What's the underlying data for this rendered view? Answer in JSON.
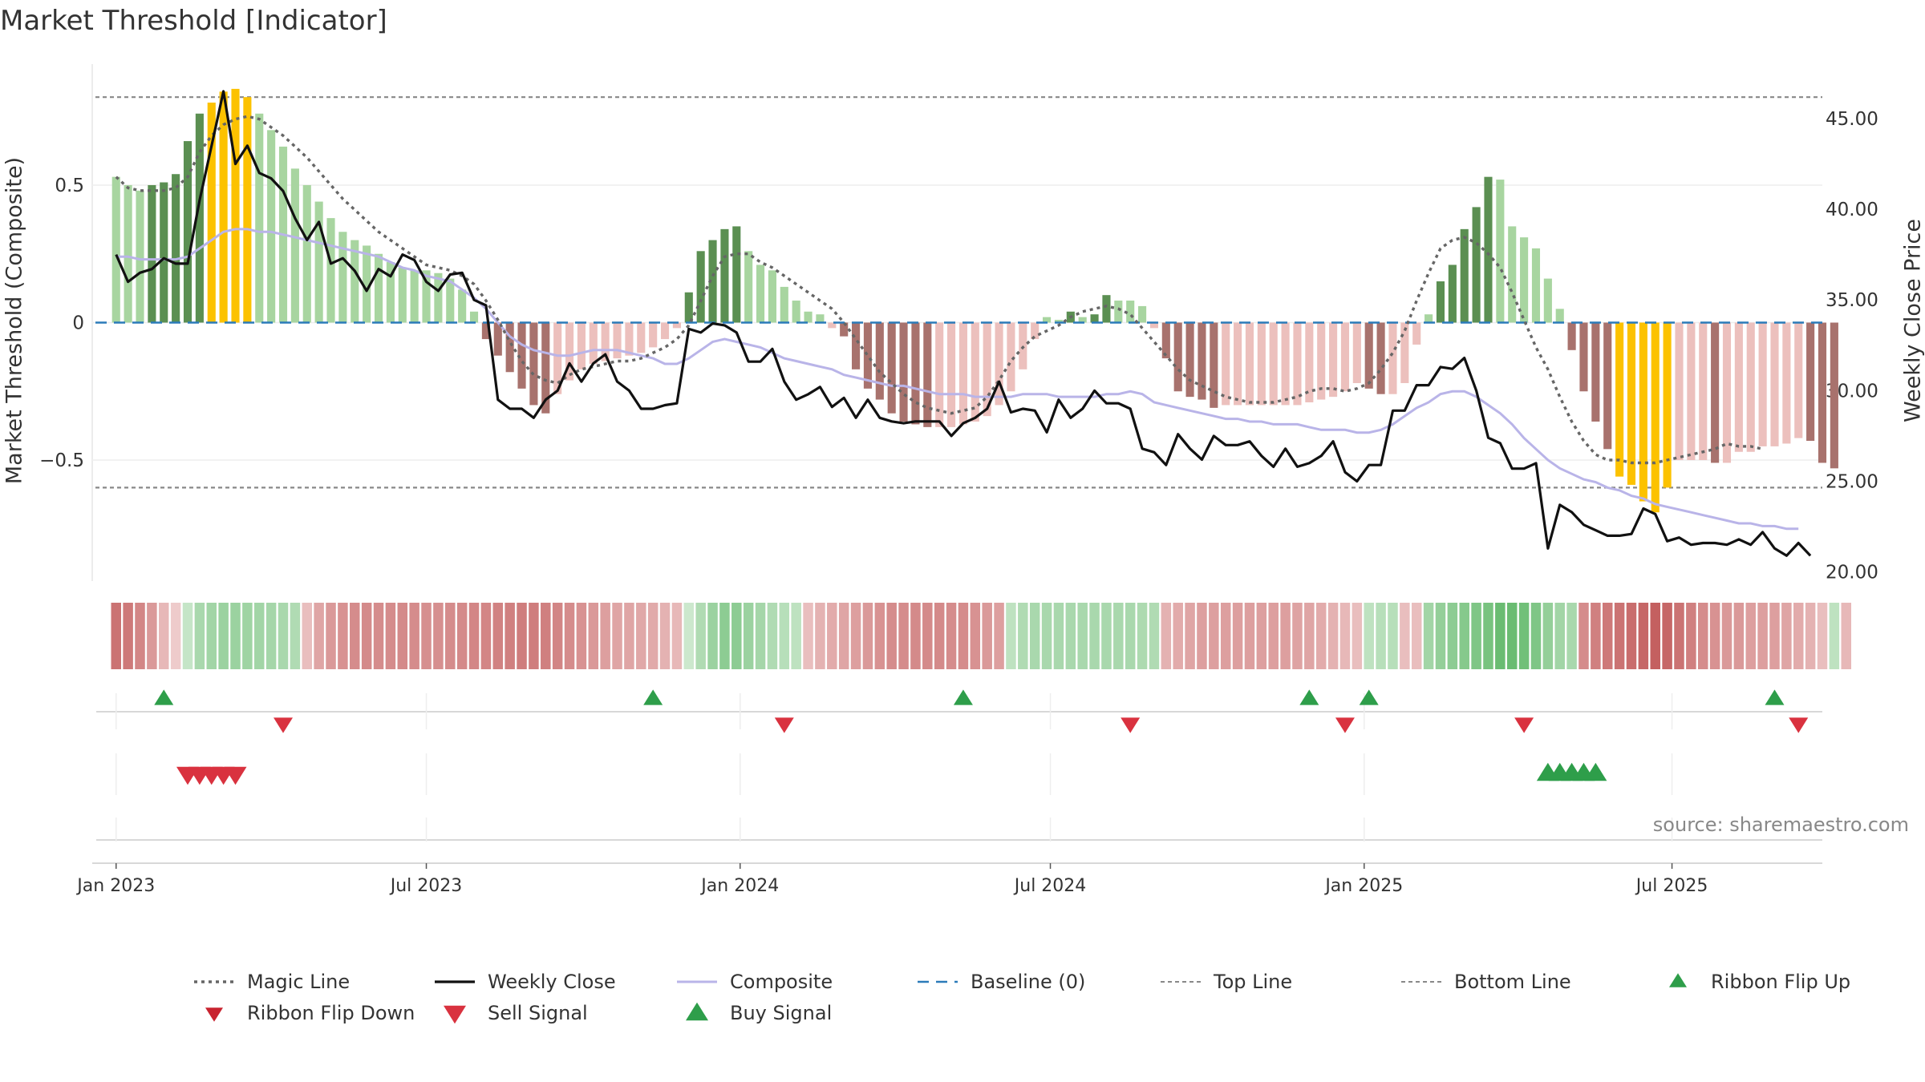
{
  "title": "Market Threshold [Indicator]",
  "source": "source: sharemaestro.com",
  "colors": {
    "bar_pos_light": "#a8d5a0",
    "bar_pos_dark": "#5b8f52",
    "bar_neg_light": "#ecc0bd",
    "bar_neg_dark": "#a8726d",
    "bar_extreme": "#fcc200",
    "weekly_close": "#111111",
    "composite": "#b9b4e8",
    "magic": "#666666",
    "baseline": "#2b7bb9",
    "buy": "#2e9e4a",
    "sell": "#d9323f"
  },
  "chart_data": {
    "type": "bar",
    "ylabel_left": "Market Threshold (Composite)",
    "ylabel_right": "Weekly Close Price",
    "ylim_left": [
      -0.94,
      0.94
    ],
    "ylim_right": [
      19.5,
      48.0
    ],
    "yticks_left": [
      {
        "v": 0.5,
        "l": "0.5"
      },
      {
        "v": 0,
        "l": "0"
      },
      {
        "v": -0.5,
        "l": "−0.5"
      }
    ],
    "yticks_right": [
      {
        "v": 45,
        "l": "45.00"
      },
      {
        "v": 40,
        "l": "40.00"
      },
      {
        "v": 35,
        "l": "35.00"
      },
      {
        "v": 30,
        "l": "30.00"
      },
      {
        "v": 25,
        "l": "25.00"
      },
      {
        "v": 20,
        "l": "20.00"
      }
    ],
    "xlim_weeks": [
      -2,
      143
    ],
    "x_ticks": [
      {
        "w": 0,
        "l": "Jan 2023"
      },
      {
        "w": 26,
        "l": "Jul 2023"
      },
      {
        "w": 52.3,
        "l": "Jan 2024"
      },
      {
        "w": 78.3,
        "l": "Jul 2024"
      },
      {
        "w": 104.6,
        "l": "Jan 2025"
      },
      {
        "w": 130.4,
        "l": "Jul 2025"
      }
    ],
    "top_line": 0.82,
    "bottom_line": -0.6,
    "bars": [
      0.53,
      0.5,
      0.48,
      0.5,
      0.51,
      0.54,
      0.66,
      0.76,
      0.8,
      0.84,
      0.85,
      0.82,
      0.76,
      0.7,
      0.64,
      0.56,
      0.5,
      0.44,
      0.38,
      0.33,
      0.3,
      0.28,
      0.25,
      0.22,
      0.2,
      0.19,
      0.19,
      0.18,
      0.16,
      0.12,
      0.04,
      -0.06,
      -0.12,
      -0.18,
      -0.24,
      -0.3,
      -0.33,
      -0.26,
      -0.21,
      -0.17,
      -0.15,
      -0.14,
      -0.13,
      -0.12,
      -0.11,
      -0.09,
      -0.06,
      -0.02,
      0.11,
      0.26,
      0.3,
      0.34,
      0.35,
      0.26,
      0.21,
      0.19,
      0.13,
      0.08,
      0.04,
      0.03,
      -0.02,
      -0.05,
      -0.17,
      -0.24,
      -0.28,
      -0.33,
      -0.36,
      -0.37,
      -0.38,
      -0.38,
      -0.38,
      -0.37,
      -0.36,
      -0.34,
      -0.3,
      -0.25,
      -0.17,
      -0.06,
      0.02,
      0.01,
      0.04,
      0.02,
      0.03,
      0.1,
      0.08,
      0.08,
      0.06,
      -0.02,
      -0.13,
      -0.25,
      -0.27,
      -0.28,
      -0.31,
      -0.3,
      -0.3,
      -0.3,
      -0.3,
      -0.3,
      -0.3,
      -0.3,
      -0.29,
      -0.28,
      -0.27,
      -0.25,
      -0.22,
      -0.24,
      -0.26,
      -0.26,
      -0.22,
      -0.08,
      0.03,
      0.15,
      0.21,
      0.34,
      0.42,
      0.53,
      0.52,
      0.35,
      0.31,
      0.27,
      0.16,
      0.05,
      -0.1,
      -0.25,
      -0.36,
      -0.46,
      -0.56,
      -0.59,
      -0.65,
      -0.69,
      -0.6,
      -0.5,
      -0.5,
      -0.5,
      -0.51,
      -0.51,
      -0.47,
      -0.47,
      -0.45,
      -0.45,
      -0.44,
      -0.42,
      -0.43,
      -0.51,
      -0.53
    ],
    "composite": [
      0.24,
      0.24,
      0.23,
      0.23,
      0.23,
      0.23,
      0.24,
      0.27,
      0.3,
      0.33,
      0.34,
      0.34,
      0.33,
      0.33,
      0.32,
      0.31,
      0.3,
      0.29,
      0.28,
      0.27,
      0.26,
      0.25,
      0.24,
      0.22,
      0.2,
      0.19,
      0.17,
      0.16,
      0.15,
      0.12,
      0.09,
      0.05,
      0.0,
      -0.05,
      -0.08,
      -0.1,
      -0.11,
      -0.12,
      -0.12,
      -0.11,
      -0.1,
      -0.1,
      -0.1,
      -0.11,
      -0.12,
      -0.13,
      -0.15,
      -0.15,
      -0.13,
      -0.1,
      -0.07,
      -0.06,
      -0.07,
      -0.08,
      -0.09,
      -0.11,
      -0.13,
      -0.14,
      -0.15,
      -0.16,
      -0.17,
      -0.19,
      -0.2,
      -0.21,
      -0.22,
      -0.23,
      -0.23,
      -0.24,
      -0.25,
      -0.26,
      -0.26,
      -0.26,
      -0.27,
      -0.27,
      -0.27,
      -0.27,
      -0.26,
      -0.26,
      -0.26,
      -0.27,
      -0.27,
      -0.27,
      -0.27,
      -0.26,
      -0.26,
      -0.25,
      -0.26,
      -0.29,
      -0.3,
      -0.31,
      -0.32,
      -0.33,
      -0.34,
      -0.35,
      -0.35,
      -0.36,
      -0.36,
      -0.37,
      -0.37,
      -0.37,
      -0.38,
      -0.39,
      -0.39,
      -0.39,
      -0.4,
      -0.4,
      -0.39,
      -0.37,
      -0.34,
      -0.31,
      -0.29,
      -0.26,
      -0.25,
      -0.25,
      -0.27,
      -0.3,
      -0.33,
      -0.37,
      -0.42,
      -0.46,
      -0.5,
      -0.53,
      -0.55,
      -0.57,
      -0.58,
      -0.6,
      -0.61,
      -0.63,
      -0.64,
      -0.66,
      -0.67,
      -0.68,
      -0.69,
      -0.7,
      -0.71,
      -0.72,
      -0.73,
      -0.73,
      -0.74,
      -0.74,
      -0.75,
      -0.75
    ],
    "magic": [
      0.53,
      0.49,
      0.48,
      0.48,
      0.48,
      0.49,
      0.53,
      0.62,
      0.68,
      0.72,
      0.74,
      0.75,
      0.74,
      0.71,
      0.68,
      0.64,
      0.6,
      0.55,
      0.5,
      0.45,
      0.41,
      0.37,
      0.33,
      0.3,
      0.27,
      0.24,
      0.21,
      0.2,
      0.19,
      0.17,
      0.14,
      0.08,
      0.01,
      -0.07,
      -0.14,
      -0.19,
      -0.21,
      -0.22,
      -0.19,
      -0.17,
      -0.16,
      -0.15,
      -0.14,
      -0.14,
      -0.13,
      -0.11,
      -0.09,
      -0.06,
      -0.01,
      0.08,
      0.17,
      0.24,
      0.25,
      0.25,
      0.22,
      0.2,
      0.17,
      0.14,
      0.11,
      0.08,
      0.05,
      0.0,
      -0.06,
      -0.12,
      -0.18,
      -0.22,
      -0.26,
      -0.29,
      -0.31,
      -0.32,
      -0.33,
      -0.32,
      -0.31,
      -0.27,
      -0.21,
      -0.14,
      -0.09,
      -0.05,
      -0.03,
      -0.01,
      0.02,
      0.04,
      0.05,
      0.06,
      0.05,
      0.03,
      -0.02,
      -0.07,
      -0.12,
      -0.17,
      -0.21,
      -0.23,
      -0.25,
      -0.27,
      -0.28,
      -0.29,
      -0.29,
      -0.29,
      -0.28,
      -0.27,
      -0.25,
      -0.24,
      -0.24,
      -0.25,
      -0.24,
      -0.22,
      -0.17,
      -0.11,
      -0.03,
      0.08,
      0.18,
      0.27,
      0.3,
      0.31,
      0.29,
      0.25,
      0.2,
      0.11,
      0.01,
      -0.09,
      -0.17,
      -0.27,
      -0.36,
      -0.43,
      -0.48,
      -0.5,
      -0.5,
      -0.51,
      -0.51,
      -0.51,
      -0.5,
      -0.49,
      -0.48,
      -0.47,
      -0.46,
      -0.44,
      -0.45,
      -0.45,
      -0.46
    ],
    "weekly_close": [
      37.5,
      36.0,
      36.5,
      36.7,
      37.3,
      37.0,
      37.0,
      40.5,
      43.5,
      46.5,
      42.5,
      43.5,
      42.0,
      41.7,
      41.0,
      39.5,
      38.3,
      39.3,
      37.0,
      37.3,
      36.6,
      35.5,
      36.7,
      36.3,
      37.5,
      37.2,
      36.0,
      35.5,
      36.4,
      36.5,
      35.0,
      34.7,
      29.5,
      29.0,
      29.0,
      28.5,
      29.5,
      30.0,
      31.5,
      30.5,
      31.5,
      32.0,
      30.5,
      30.0,
      29.0,
      29.0,
      29.2,
      29.3,
      33.4,
      33.2,
      33.7,
      33.6,
      33.2,
      31.6,
      31.6,
      32.3,
      30.5,
      29.5,
      29.8,
      30.2,
      29.1,
      29.6,
      28.5,
      29.5,
      28.5,
      28.3,
      28.2,
      28.3,
      28.3,
      28.3,
      27.5,
      28.2,
      28.5,
      29.0,
      30.5,
      28.8,
      29.0,
      28.9,
      27.7,
      29.5,
      28.5,
      29.0,
      30.0,
      29.3,
      29.3,
      29.0,
      26.8,
      26.6,
      25.9,
      27.6,
      26.8,
      26.2,
      27.5,
      27.0,
      27.0,
      27.2,
      26.4,
      25.8,
      26.8,
      25.8,
      26.0,
      26.4,
      27.2,
      25.5,
      25.0,
      25.9,
      25.9,
      28.9,
      28.9,
      30.3,
      30.3,
      31.3,
      31.2,
      31.8,
      30.0,
      27.4,
      27.1,
      25.7,
      25.7,
      26.0,
      21.3,
      23.7,
      23.3,
      22.6,
      22.3,
      22.0,
      22.0,
      22.1,
      23.5,
      23.2,
      21.7,
      21.9,
      21.5,
      21.6,
      21.6,
      21.5,
      21.8,
      21.5,
      22.2,
      21.3,
      20.9,
      21.6,
      20.9
    ],
    "ribbon": [
      -0.8,
      -0.75,
      -0.65,
      -0.5,
      -0.25,
      -0.1,
      0.15,
      0.35,
      0.4,
      0.45,
      0.45,
      0.42,
      0.4,
      0.38,
      0.35,
      0.3,
      -0.2,
      -0.4,
      -0.5,
      -0.55,
      -0.6,
      -0.62,
      -0.6,
      -0.6,
      -0.62,
      -0.6,
      -0.58,
      -0.58,
      -0.6,
      -0.62,
      -0.65,
      -0.65,
      -0.68,
      -0.7,
      -0.72,
      -0.72,
      -0.7,
      -0.66,
      -0.6,
      -0.55,
      -0.5,
      -0.45,
      -0.4,
      -0.4,
      -0.38,
      -0.36,
      -0.3,
      -0.25,
      0.1,
      0.3,
      0.45,
      0.55,
      0.55,
      0.45,
      0.38,
      0.3,
      0.25,
      0.2,
      -0.2,
      -0.3,
      -0.35,
      -0.4,
      -0.45,
      -0.5,
      -0.55,
      -0.6,
      -0.6,
      -0.62,
      -0.62,
      -0.62,
      -0.6,
      -0.6,
      -0.55,
      -0.5,
      -0.45,
      0.2,
      0.3,
      0.35,
      0.35,
      0.35,
      0.35,
      0.35,
      0.35,
      0.35,
      0.35,
      0.35,
      0.32,
      0.3,
      -0.3,
      -0.35,
      -0.4,
      -0.45,
      -0.45,
      -0.45,
      -0.45,
      -0.45,
      -0.45,
      -0.45,
      -0.45,
      -0.42,
      -0.4,
      -0.35,
      -0.3,
      -0.25,
      -0.2,
      0.2,
      0.25,
      0.25,
      -0.2,
      -0.2,
      0.4,
      0.5,
      0.55,
      0.6,
      0.65,
      0.7,
      0.8,
      0.8,
      0.75,
      0.65,
      0.5,
      0.4,
      0.35,
      -0.6,
      -0.7,
      -0.75,
      -0.8,
      -0.85,
      -0.9,
      -0.95,
      -0.9,
      -0.8,
      -0.7,
      -0.6,
      -0.55,
      -0.5,
      -0.5,
      -0.45,
      -0.45,
      -0.45,
      -0.4,
      -0.35,
      -0.3,
      -0.2,
      0.2,
      -0.25
    ],
    "ribbon_flip_up_weeks": [
      4,
      45,
      71,
      100,
      105,
      139
    ],
    "ribbon_flip_down_weeks": [
      14,
      56,
      85,
      103,
      118,
      141
    ],
    "sell_signal_weeks": [
      6,
      7,
      8,
      9,
      10
    ],
    "buy_signal_weeks": [
      120,
      121,
      122,
      123,
      124
    ],
    "legend": [
      {
        "label": "Magic Line",
        "kind": "dotted"
      },
      {
        "label": "Weekly Close",
        "kind": "solid"
      },
      {
        "label": "Composite",
        "kind": "composite"
      },
      {
        "label": "Baseline (0)",
        "kind": "dashed"
      },
      {
        "label": "Top Line",
        "kind": "dotted-light"
      },
      {
        "label": "Bottom Line",
        "kind": "dotted-light"
      },
      {
        "label": "Ribbon Flip Up",
        "kind": "tri-up"
      },
      {
        "label": "Ribbon Flip Down",
        "kind": "tri-down"
      },
      {
        "label": "Sell Signal",
        "kind": "tri-down-big"
      },
      {
        "label": "Buy Signal",
        "kind": "tri-up-big"
      }
    ]
  }
}
